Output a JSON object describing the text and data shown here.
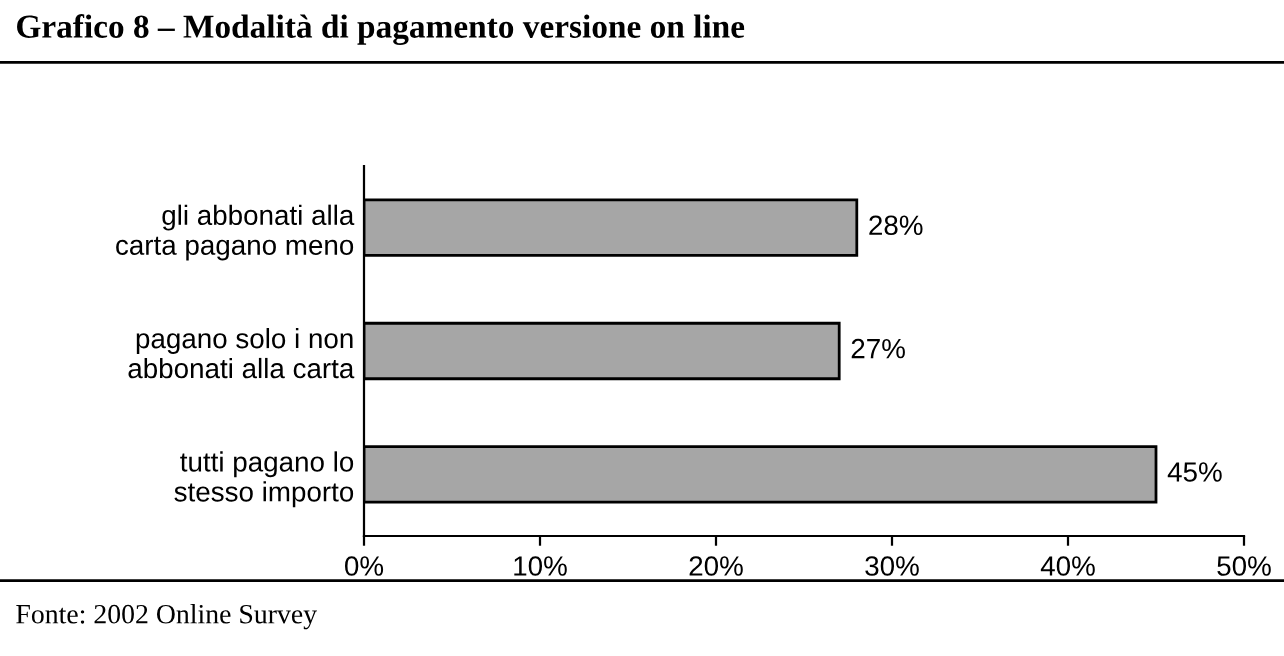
{
  "chart_data": {
    "type": "bar",
    "orientation": "horizontal",
    "title": "Grafico 8 – Modalità di pagamento versione on line",
    "categories": [
      "gli abbonati alla\ncarta pagano meno",
      "pagano solo i non\nabbonati alla carta",
      "tutti pagano lo\nstesso importo"
    ],
    "values": [
      28,
      27,
      45
    ],
    "value_labels": [
      "28%",
      "27%",
      "45%"
    ],
    "color": "#a6a6a6",
    "xlim": [
      0,
      50
    ],
    "xticks": [
      {
        "value": 0,
        "label": "0%"
      },
      {
        "value": 10,
        "label": "10%"
      },
      {
        "value": 20,
        "label": "20%"
      },
      {
        "value": 30,
        "label": "30%"
      },
      {
        "value": 40,
        "label": "40%"
      },
      {
        "value": 50,
        "label": "50%"
      }
    ],
    "grid": false,
    "annotations": [
      "Fonte: 2002 Online Survey"
    ]
  }
}
